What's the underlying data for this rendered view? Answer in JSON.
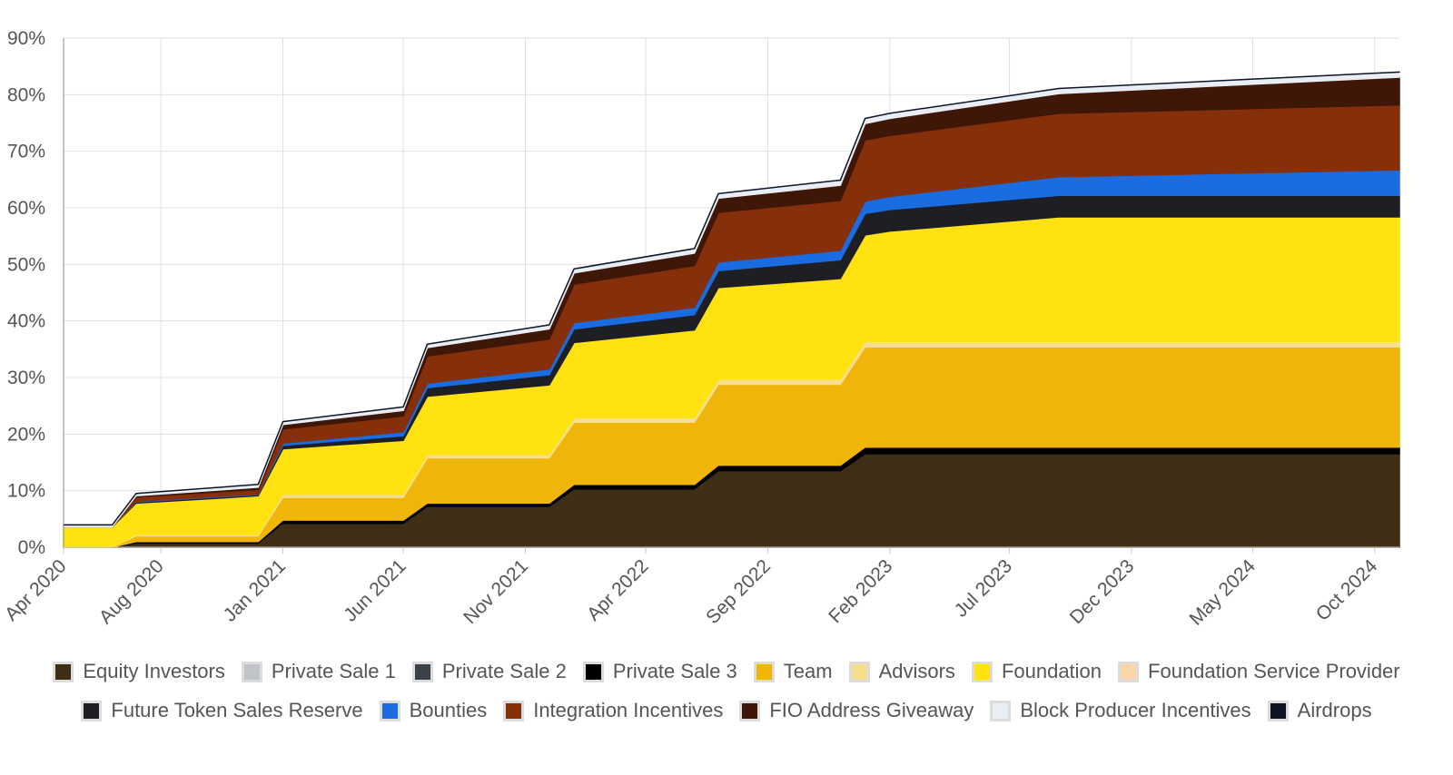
{
  "chart_data": {
    "type": "area",
    "stacked": true,
    "title": "",
    "xlabel": "",
    "ylabel": "",
    "ylim": [
      0,
      90
    ],
    "y_unit": "%",
    "y_ticks": [
      "0%",
      "10%",
      "20%",
      "30%",
      "40%",
      "50%",
      "60%",
      "70%",
      "80%",
      "90%"
    ],
    "x_range": [
      "2020-04-01",
      "2024-11-01"
    ],
    "x_ticks": [
      {
        "label": "Apr 2020",
        "date": "2020-04-01"
      },
      {
        "label": "Aug 2020",
        "date": "2020-08-01"
      },
      {
        "label": "Jan 2021",
        "date": "2021-01-01"
      },
      {
        "label": "Jun 2021",
        "date": "2021-06-01"
      },
      {
        "label": "Nov 2021",
        "date": "2021-11-01"
      },
      {
        "label": "Apr 2022",
        "date": "2022-04-01"
      },
      {
        "label": "Sep 2022",
        "date": "2022-09-01"
      },
      {
        "label": "Feb 2023",
        "date": "2023-02-01"
      },
      {
        "label": "Jul 2023",
        "date": "2023-07-01"
      },
      {
        "label": "Dec 2023",
        "date": "2023-12-01"
      },
      {
        "label": "May 2024",
        "date": "2024-05-01"
      },
      {
        "label": "Oct 2024",
        "date": "2024-10-01"
      }
    ],
    "grid": true,
    "legend_position": "bottom",
    "x": [
      "2020-04-01",
      "2020-06-01",
      "2020-07-01",
      "2020-12-01",
      "2021-01-01",
      "2021-06-01",
      "2021-07-01",
      "2021-12-01",
      "2022-01-01",
      "2022-06-01",
      "2022-07-01",
      "2022-12-01",
      "2023-01-01",
      "2023-02-01",
      "2023-09-01",
      "2024-11-01"
    ],
    "series": [
      {
        "name": "Equity Investors",
        "color": "#3d2e15",
        "values": [
          0.0,
          0.0,
          0.7,
          0.7,
          4.2,
          4.2,
          7.2,
          7.2,
          10.3,
          10.3,
          13.5,
          13.5,
          16.5,
          16.5,
          16.5,
          16.5
        ]
      },
      {
        "name": "Private Sale 1",
        "color": "#c0c4c8",
        "values": [
          0,
          0,
          0,
          0,
          0,
          0,
          0,
          0,
          0,
          0,
          0,
          0,
          0,
          0,
          0,
          0
        ]
      },
      {
        "name": "Private Sale 2",
        "color": "#3b4149",
        "values": [
          0,
          0,
          0,
          0,
          0,
          0,
          0,
          0,
          0,
          0,
          0,
          0,
          0,
          0,
          0,
          0
        ]
      },
      {
        "name": "Private Sale 3",
        "color": "#000000",
        "values": [
          0.0,
          0.0,
          0.3,
          0.3,
          0.6,
          0.6,
          0.6,
          0.6,
          0.8,
          0.8,
          1.0,
          1.0,
          1.2,
          1.2,
          1.2,
          1.2
        ]
      },
      {
        "name": "Team",
        "color": "#f0b50b",
        "values": [
          0.0,
          0.0,
          1.0,
          1.0,
          4.0,
          4.0,
          8.0,
          8.0,
          11.0,
          11.0,
          14.3,
          14.3,
          17.7,
          17.7,
          17.7,
          17.7
        ]
      },
      {
        "name": "Advisors",
        "color": "#f5df8c",
        "values": [
          0.0,
          0.0,
          0.3,
          0.3,
          0.6,
          0.6,
          0.6,
          0.6,
          0.8,
          0.8,
          0.9,
          0.9,
          1.0,
          1.0,
          1.0,
          1.0
        ]
      },
      {
        "name": "Foundation",
        "color": "#ffe20f",
        "values": [
          3.6,
          3.6,
          5.5,
          6.8,
          8.0,
          9.5,
          10.3,
          12.3,
          13.3,
          15.5,
          16.2,
          17.8,
          18.8,
          19.5,
          22.0,
          22.0
        ]
      },
      {
        "name": "Foundation Service Provider",
        "color": "#fbd6a8",
        "values": [
          0,
          0,
          0,
          0,
          0,
          0,
          0,
          0,
          0,
          0,
          0,
          0,
          0,
          0,
          0,
          0
        ]
      },
      {
        "name": "Future Token Sales Reserve",
        "color": "#1e1f24",
        "values": [
          0.0,
          0.0,
          0.2,
          0.2,
          0.6,
          0.8,
          1.5,
          1.8,
          2.4,
          2.7,
          3.0,
          3.3,
          3.8,
          3.8,
          3.8,
          3.8
        ]
      },
      {
        "name": "Bounties",
        "color": "#1a6ce0",
        "values": [
          0.0,
          0.0,
          0.1,
          0.1,
          0.4,
          0.7,
          0.8,
          1.0,
          1.1,
          1.3,
          1.5,
          1.7,
          2.2,
          2.3,
          3.3,
          4.5
        ]
      },
      {
        "name": "Integration Incentives",
        "color": "#85300a",
        "values": [
          0.0,
          0.0,
          0.8,
          0.8,
          2.5,
          2.8,
          4.8,
          5.3,
          6.8,
          7.4,
          8.8,
          8.8,
          10.8,
          10.8,
          11.2,
          11.5
        ]
      },
      {
        "name": "FIO Address Giveaway",
        "color": "#3e1708",
        "values": [
          0.0,
          0.0,
          0.2,
          0.4,
          0.8,
          1.0,
          1.5,
          1.8,
          2.0,
          2.2,
          2.5,
          2.7,
          2.9,
          3.0,
          3.5,
          4.9
        ]
      },
      {
        "name": "Block Producer Incentives",
        "color": "#e9eef4",
        "values": [
          0.35,
          0.35,
          0.4,
          0.5,
          0.5,
          0.6,
          0.6,
          0.7,
          0.7,
          0.8,
          0.8,
          0.9,
          0.9,
          0.9,
          0.9,
          0.9
        ]
      },
      {
        "name": "Airdrops",
        "color": "#0f1424",
        "values": [
          0,
          0,
          0,
          0,
          0,
          0,
          0,
          0,
          0,
          0,
          0,
          0,
          0,
          0,
          0,
          0
        ]
      }
    ]
  }
}
